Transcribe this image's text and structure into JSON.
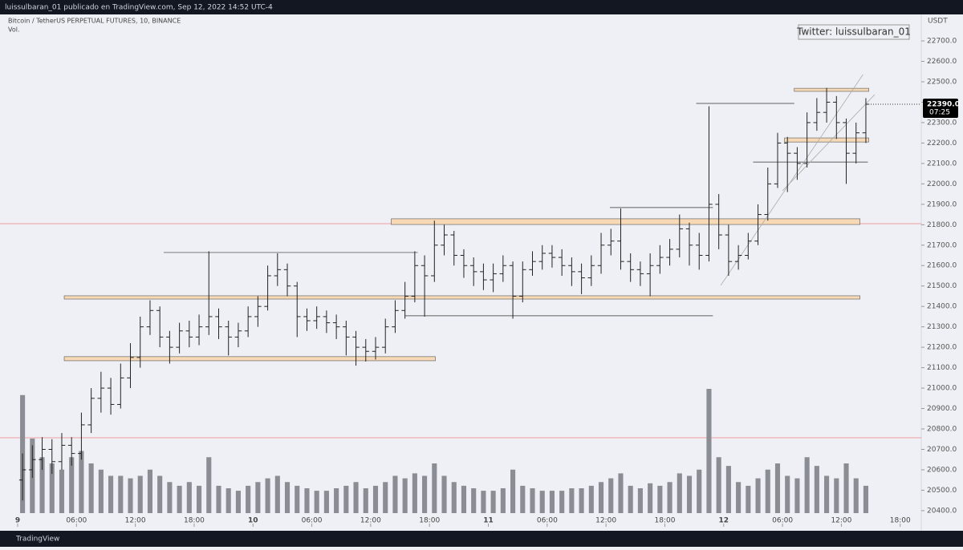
{
  "chart_data": {
    "type": "ohlc",
    "header": "luissulbaran_01 publicado en TradingView.com, Sep 12, 2022 14:52 UTC-4",
    "title": "Bitcoin / TetherUS PERPETUAL FUTURES, 10, BINANCE",
    "volume_label": "Vol.",
    "currency": "USDT",
    "annotation": "Twitter: luissulbaran_01",
    "brand": "TradingView",
    "last_price": {
      "value": 22390,
      "label": "22390.0"
    },
    "countdown": "07:25",
    "open": [
      20550,
      20600,
      20650,
      20700,
      20640,
      20720,
      20680,
      20820,
      20950,
      21000,
      20920,
      21050,
      21150,
      21300,
      21380,
      21250,
      21200,
      21280,
      21250,
      21300,
      21350,
      21300,
      21250,
      21280,
      21350,
      21400,
      21550,
      21580,
      21500,
      21350,
      21330,
      21350,
      21320,
      21300,
      21250,
      21200,
      21180,
      21200,
      21300,
      21380,
      21450,
      21600,
      21550,
      21700,
      21750,
      21650,
      21600,
      21570,
      21530,
      21560,
      21600,
      21450,
      21580,
      21620,
      21660,
      21640,
      21600,
      21570,
      21540,
      21600,
      21700,
      21720,
      21620,
      21580,
      21560,
      21600,
      21640,
      21680,
      21780,
      21700,
      21650,
      21900,
      21750,
      21620,
      21650,
      21720,
      21850,
      22000,
      22200,
      22150,
      22100,
      22300,
      22350,
      22400,
      22300,
      22150,
      22250
    ],
    "high": [
      20680,
      20720,
      20760,
      20750,
      20780,
      20760,
      20880,
      21000,
      21080,
      21050,
      21120,
      21220,
      21350,
      21430,
      21400,
      21280,
      21320,
      21330,
      21360,
      21670,
      21390,
      21330,
      21320,
      21400,
      21450,
      21600,
      21660,
      21610,
      21520,
      21390,
      21400,
      21380,
      21360,
      21330,
      21280,
      21240,
      21250,
      21340,
      21430,
      21520,
      21670,
      21650,
      21820,
      21800,
      21770,
      21680,
      21640,
      21610,
      21610,
      21650,
      21620,
      21620,
      21670,
      21700,
      21700,
      21680,
      21640,
      21610,
      21650,
      21760,
      21780,
      21880,
      21660,
      21620,
      21660,
      21700,
      21730,
      21850,
      21810,
      21760,
      22380,
      21950,
      21800,
      21700,
      21760,
      21900,
      22080,
      22250,
      22230,
      22180,
      22350,
      22420,
      22470,
      22430,
      22320,
      22300,
      22420
    ],
    "low": [
      20450,
      20560,
      20600,
      20580,
      20600,
      20620,
      20650,
      20780,
      20880,
      20870,
      20900,
      21000,
      21100,
      21260,
      21200,
      21120,
      21170,
      21200,
      21210,
      21260,
      21240,
      21160,
      21200,
      21250,
      21300,
      21380,
      21500,
      21450,
      21250,
      21280,
      21290,
      21270,
      21240,
      21160,
      21110,
      21130,
      21140,
      21170,
      21270,
      21340,
      21420,
      21350,
      21520,
      21650,
      21600,
      21540,
      21500,
      21480,
      21470,
      21520,
      21340,
      21420,
      21550,
      21580,
      21590,
      21550,
      21500,
      21460,
      21500,
      21560,
      21650,
      21580,
      21520,
      21500,
      21450,
      21560,
      21600,
      21640,
      21600,
      21580,
      21620,
      21680,
      21550,
      21580,
      21630,
      21700,
      21820,
      21980,
      21960,
      22020,
      22080,
      22260,
      22300,
      22220,
      22000,
      22100,
      22200
    ],
    "close": [
      20600,
      20650,
      20700,
      20640,
      20720,
      20680,
      20820,
      20950,
      21000,
      20920,
      21050,
      21150,
      21300,
      21380,
      21250,
      21200,
      21280,
      21250,
      21300,
      21350,
      21300,
      21250,
      21280,
      21350,
      21400,
      21550,
      21580,
      21500,
      21350,
      21330,
      21350,
      21320,
      21300,
      21250,
      21200,
      21180,
      21200,
      21300,
      21380,
      21450,
      21600,
      21550,
      21700,
      21750,
      21650,
      21600,
      21570,
      21530,
      21560,
      21600,
      21450,
      21580,
      21620,
      21660,
      21640,
      21600,
      21570,
      21540,
      21600,
      21700,
      21720,
      21620,
      21580,
      21560,
      21600,
      21640,
      21680,
      21780,
      21700,
      21650,
      21900,
      21750,
      21620,
      21650,
      21720,
      21850,
      22000,
      22200,
      22150,
      22100,
      22300,
      22350,
      22400,
      22300,
      22150,
      22250,
      22390
    ],
    "volume": [
      95,
      60,
      45,
      40,
      35,
      45,
      50,
      40,
      35,
      30,
      30,
      28,
      30,
      35,
      30,
      25,
      22,
      25,
      22,
      45,
      22,
      20,
      18,
      22,
      25,
      28,
      30,
      25,
      22,
      20,
      18,
      18,
      20,
      22,
      25,
      20,
      22,
      25,
      30,
      28,
      32,
      30,
      40,
      30,
      25,
      22,
      20,
      18,
      18,
      20,
      35,
      22,
      20,
      18,
      18,
      18,
      20,
      20,
      22,
      25,
      28,
      32,
      22,
      20,
      24,
      22,
      25,
      32,
      30,
      35,
      100,
      45,
      38,
      25,
      22,
      28,
      35,
      40,
      30,
      28,
      45,
      38,
      30,
      28,
      40,
      28,
      22
    ],
    "bar_color": "#222222",
    "volume_color": "#8a8d94",
    "xlim": [
      -1.8,
      92.15
    ],
    "xticks": [
      {
        "value": 0,
        "label": "9"
      },
      {
        "value": 6,
        "label": "06:00"
      },
      {
        "value": 12,
        "label": "12:00"
      },
      {
        "value": 18,
        "label": "18:00"
      },
      {
        "value": 24,
        "label": "10"
      },
      {
        "value": 30,
        "label": "06:00"
      },
      {
        "value": 36,
        "label": "12:00"
      },
      {
        "value": 42,
        "label": "18:00"
      },
      {
        "value": 48,
        "label": "11"
      },
      {
        "value": 54,
        "label": "06:00"
      },
      {
        "value": 60,
        "label": "12:00"
      },
      {
        "value": 66,
        "label": "18:00"
      },
      {
        "value": 72,
        "label": "12"
      },
      {
        "value": 78,
        "label": "06:00"
      },
      {
        "value": 84,
        "label": "12:00"
      },
      {
        "value": 90,
        "label": "18:00"
      }
    ],
    "ylim": [
      20329,
      22814
    ],
    "yticks": [
      {
        "value": 22700,
        "label": "22700.0"
      },
      {
        "value": 22600,
        "label": "22600.0"
      },
      {
        "value": 22500,
        "label": "22500.0"
      },
      {
        "value": 22400,
        "label": "22400.0"
      },
      {
        "value": 22300,
        "label": "22300.0"
      },
      {
        "value": 22200,
        "label": "22200.0"
      },
      {
        "value": 22100,
        "label": "22100.0"
      },
      {
        "value": 22000,
        "label": "22000.0"
      },
      {
        "value": 21900,
        "label": "21900.0"
      },
      {
        "value": 21800,
        "label": "21800.0"
      },
      {
        "value": 21700,
        "label": "21700.0"
      },
      {
        "value": 21600,
        "label": "21600.0"
      },
      {
        "value": 21500,
        "label": "21500.0"
      },
      {
        "value": 21400,
        "label": "21400.0"
      },
      {
        "value": 21300,
        "label": "21300.0"
      },
      {
        "value": 21200,
        "label": "21200.0"
      },
      {
        "value": 21100,
        "label": "21100.0"
      },
      {
        "value": 21000,
        "label": "21000.0"
      },
      {
        "value": 20900,
        "label": "20900.0"
      },
      {
        "value": 20800,
        "label": "20800.0"
      },
      {
        "value": 20700,
        "label": "20700.0"
      },
      {
        "value": 20600,
        "label": "20600.0"
      },
      {
        "value": 20500,
        "label": "20500.0"
      },
      {
        "value": 20400,
        "label": "20400.0"
      }
    ],
    "zones": [
      {
        "low": 21134,
        "high": 21154,
        "from": 4.75,
        "to": 42.6
      },
      {
        "low": 21801,
        "high": 21829,
        "from": 38.1,
        "to": 85.9
      },
      {
        "low": 21436,
        "high": 21452,
        "from": 4.75,
        "to": 85.9
      },
      {
        "low": 22453,
        "high": 22468,
        "from": 79.2,
        "to": 86.8
      },
      {
        "low": 22205,
        "high": 22225,
        "from": 78.2,
        "to": 86.8
      }
    ],
    "zone_color": "#f7d9b5",
    "levels": [
      {
        "price": 21664,
        "from": 14.9,
        "to": 40.8
      },
      {
        "price": 21354,
        "from": 39.5,
        "to": 70.9
      },
      {
        "price": 21884,
        "from": 60.4,
        "to": 70.9
      },
      {
        "price": 22394,
        "from": 69.2,
        "to": 79.2
      },
      {
        "price": 22107,
        "from": 75,
        "to": 86.7
      }
    ],
    "alerts": [
      21805,
      20757
    ],
    "alert_color": "#f08080",
    "trendlines": [
      {
        "from": [
          71.7,
          21503
        ],
        "to": [
          86.2,
          22535
        ]
      },
      {
        "from": [
          78,
          21966
        ],
        "to": [
          87.4,
          22437
        ]
      }
    ]
  }
}
